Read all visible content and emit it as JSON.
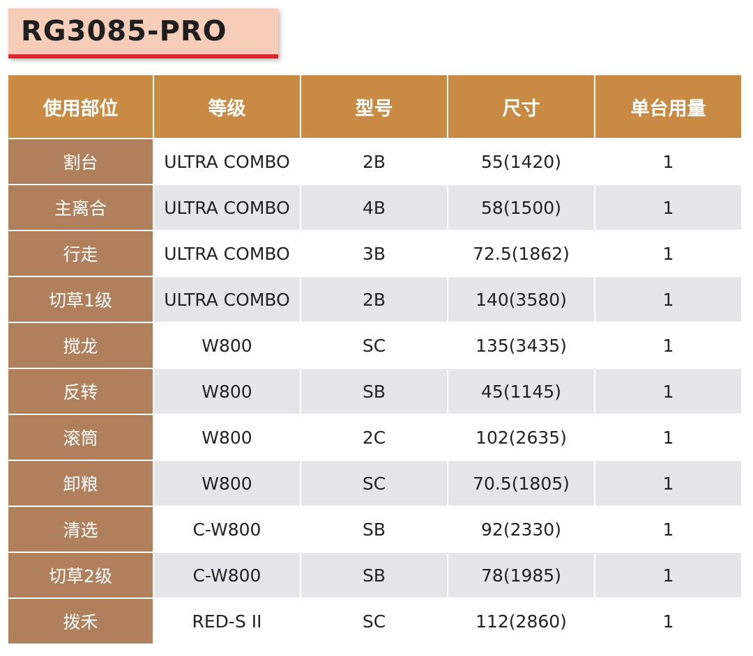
{
  "title": "RG3085-PRO",
  "table": {
    "headers": [
      "使用部位",
      "等级",
      "型号",
      "尺寸",
      "单台用量"
    ],
    "rows": [
      [
        "割台",
        "ULTRA COMBO",
        "2B",
        "55(1420)",
        "1"
      ],
      [
        "主离合",
        "ULTRA COMBO",
        "4B",
        "58(1500)",
        "1"
      ],
      [
        "行走",
        "ULTRA COMBO",
        "3B",
        "72.5(1862)",
        "1"
      ],
      [
        "切草1级",
        "ULTRA COMBO",
        "2B",
        "140(3580)",
        "1"
      ],
      [
        "搅龙",
        "W800",
        "SC",
        "135(3435)",
        "1"
      ],
      [
        "反转",
        "W800",
        "SB",
        "45(1145)",
        "1"
      ],
      [
        "滚筒",
        "W800",
        "2C",
        "102(2635)",
        "1"
      ],
      [
        "卸粮",
        "W800",
        "SC",
        "70.5(1805)",
        "1"
      ],
      [
        "清选",
        "C-W800",
        "SB",
        "92(2330)",
        "1"
      ],
      [
        "切草2级",
        "C-W800",
        "SB",
        "78(1985)",
        "1"
      ],
      [
        "拨禾",
        "RED-S II",
        "SC",
        "112(2860)",
        "1"
      ]
    ]
  },
  "colors": {
    "header_bg": "#c98b43",
    "part_bg": "#b07f5c",
    "stripe_bg": "#e6e5e7",
    "title_bg": "#f6cdb8",
    "title_underline": "#e0262a"
  }
}
